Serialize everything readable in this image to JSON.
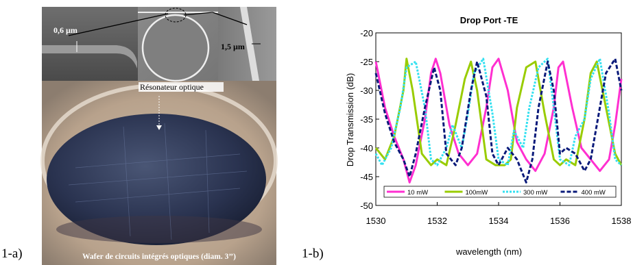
{
  "figure": {
    "label_a": "1-a)",
    "label_b": "1-b)"
  },
  "photo": {
    "dim_left": "0,6 µm",
    "dim_right": "1,5 µm",
    "resonator_label": "Résonateur optique",
    "wafer_caption": "Wafer de circuits intégrés optiques (diam.  3’’)"
  },
  "chart_data": {
    "type": "line",
    "title": "Drop Port  -TE",
    "xlabel": "wavelength (nm)",
    "ylabel": "Drop Transmission (dB)",
    "xlim": [
      1530,
      1538
    ],
    "ylim": [
      -50,
      -20
    ],
    "xticks": [
      1530,
      1532,
      1534,
      1536,
      1538
    ],
    "yticks": [
      -20,
      -25,
      -30,
      -35,
      -40,
      -45,
      -50
    ],
    "grid": false,
    "legend_position": "bottom",
    "series": [
      {
        "name": "10 mW",
        "color": "#ff2fd0",
        "dash": "solid",
        "x": [
          1530.0,
          1530.3,
          1530.6,
          1530.9,
          1531.1,
          1531.3,
          1531.6,
          1531.8,
          1531.95,
          1532.1,
          1532.4,
          1532.7,
          1533.0,
          1533.3,
          1533.6,
          1533.8,
          1534.0,
          1534.3,
          1534.6,
          1534.9,
          1535.2,
          1535.5,
          1535.8,
          1535.95,
          1536.1,
          1536.4,
          1536.7,
          1537.0,
          1537.3,
          1537.6,
          1537.8,
          1538.0
        ],
        "y": [
          -25,
          -33,
          -38,
          -42,
          -46,
          -43,
          -35,
          -27,
          -24.5,
          -27,
          -36,
          -41,
          -43,
          -41,
          -33,
          -26,
          -24.5,
          -30,
          -39,
          -42,
          -44,
          -41,
          -33,
          -26,
          -25,
          -33,
          -40,
          -42,
          -44,
          -42,
          -36,
          -28
        ]
      },
      {
        "name": "100mW",
        "color": "#99cc00",
        "dash": "solid",
        "x": [
          1530.0,
          1530.3,
          1530.6,
          1530.9,
          1531.0,
          1531.2,
          1531.5,
          1531.8,
          1532.0,
          1532.3,
          1532.6,
          1532.9,
          1533.1,
          1533.3,
          1533.6,
          1533.9,
          1534.2,
          1534.4,
          1534.6,
          1534.9,
          1535.2,
          1535.5,
          1535.8,
          1536.0,
          1536.2,
          1536.5,
          1536.8,
          1537.0,
          1537.2,
          1537.5,
          1537.8,
          1538.0
        ],
        "y": [
          -40,
          -42,
          -38,
          -30,
          -24.5,
          -30,
          -41,
          -43,
          -42,
          -43,
          -36,
          -28,
          -25,
          -30,
          -42,
          -43,
          -43,
          -42,
          -33,
          -26,
          -25,
          -34,
          -42,
          -43,
          -42,
          -43,
          -35,
          -27,
          -25,
          -33,
          -41,
          -43
        ]
      },
      {
        "name": "300 mW",
        "color": "#33e0f0",
        "dash": "3,2",
        "x": [
          1530.0,
          1530.2,
          1530.5,
          1530.8,
          1531.0,
          1531.3,
          1531.6,
          1531.8,
          1532.0,
          1532.3,
          1532.5,
          1532.8,
          1533.0,
          1533.2,
          1533.5,
          1533.8,
          1534.0,
          1534.3,
          1534.5,
          1534.8,
          1535.0,
          1535.3,
          1535.6,
          1535.8,
          1536.0,
          1536.3,
          1536.5,
          1536.8,
          1537.0,
          1537.3,
          1537.6,
          1537.8,
          1538.0
        ],
        "y": [
          -41,
          -43,
          -40,
          -33,
          -26,
          -25,
          -33,
          -42,
          -43,
          -40,
          -36,
          -40,
          -34,
          -27,
          -24.5,
          -34,
          -42,
          -43,
          -37,
          -40,
          -33,
          -26,
          -24.5,
          -33,
          -42,
          -43,
          -38,
          -35,
          -28,
          -24.5,
          -34,
          -42,
          -43
        ]
      },
      {
        "name": "400 mW",
        "color": "#0a1a7a",
        "dash": "6,3",
        "x": [
          1530.0,
          1530.3,
          1530.6,
          1530.9,
          1531.1,
          1531.3,
          1531.6,
          1531.9,
          1532.1,
          1532.3,
          1532.6,
          1532.8,
          1533.1,
          1533.3,
          1533.6,
          1533.8,
          1534.0,
          1534.3,
          1534.6,
          1534.9,
          1535.1,
          1535.3,
          1535.6,
          1535.8,
          1536.0,
          1536.2,
          1536.5,
          1536.8,
          1537.0,
          1537.2,
          1537.5,
          1537.8,
          1538.0
        ],
        "y": [
          -27,
          -34,
          -39,
          -42,
          -45,
          -41,
          -33,
          -26,
          -30,
          -41,
          -43,
          -40,
          -30,
          -25,
          -31,
          -41,
          -43,
          -40,
          -42,
          -46,
          -42,
          -33,
          -25,
          -30,
          -41,
          -40,
          -41,
          -44,
          -42,
          -36,
          -27,
          -24.5,
          -30
        ]
      }
    ]
  }
}
